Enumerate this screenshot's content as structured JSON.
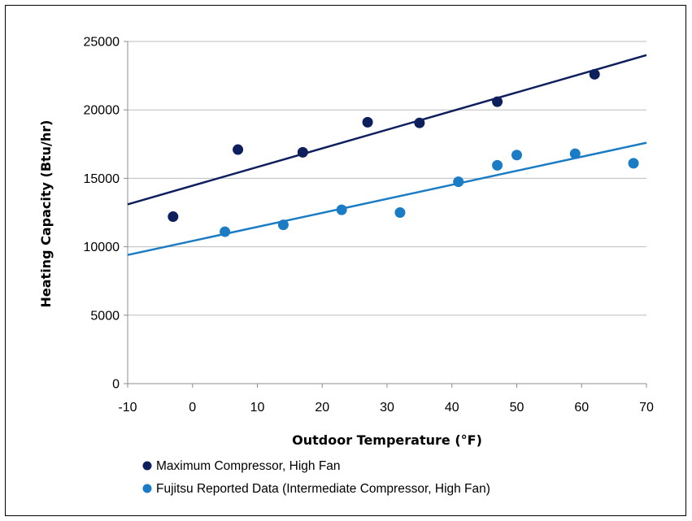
{
  "chart_data": {
    "type": "scatter",
    "xlabel": "Outdoor Temperature (°F)",
    "ylabel": "Heating Capacity (Btu/hr)",
    "xlim": [
      -10,
      70
    ],
    "ylim": [
      0,
      25000
    ],
    "x_ticks": [
      -10,
      0,
      10,
      20,
      30,
      40,
      50,
      60,
      70
    ],
    "y_ticks": [
      0,
      5000,
      10000,
      15000,
      20000,
      25000
    ],
    "grid": "horizontal",
    "legend_position": "bottom",
    "series": [
      {
        "name": "Maximum Compressor, High Fan",
        "color": "#0d1f5c",
        "points": [
          {
            "x": -3,
            "y": 12200
          },
          {
            "x": 7,
            "y": 17100
          },
          {
            "x": 17,
            "y": 16900
          },
          {
            "x": 27,
            "y": 19100
          },
          {
            "x": 35,
            "y": 19050
          },
          {
            "x": 47,
            "y": 20600
          },
          {
            "x": 62,
            "y": 22600
          }
        ],
        "trendline": {
          "x": [
            -10,
            70
          ],
          "y": [
            13100,
            24000
          ]
        }
      },
      {
        "name": "Fujitsu Reported Data (Intermediate Compressor, High Fan)",
        "color": "#1a7cc4",
        "points": [
          {
            "x": 5,
            "y": 11100
          },
          {
            "x": 14,
            "y": 11600
          },
          {
            "x": 23,
            "y": 12700
          },
          {
            "x": 32,
            "y": 12500
          },
          {
            "x": 41,
            "y": 14750
          },
          {
            "x": 47,
            "y": 15950
          },
          {
            "x": 50,
            "y": 16700
          },
          {
            "x": 59,
            "y": 16800
          },
          {
            "x": 68,
            "y": 16100
          }
        ],
        "trendline": {
          "x": [
            -10,
            70
          ],
          "y": [
            9400,
            17600
          ]
        }
      }
    ]
  }
}
